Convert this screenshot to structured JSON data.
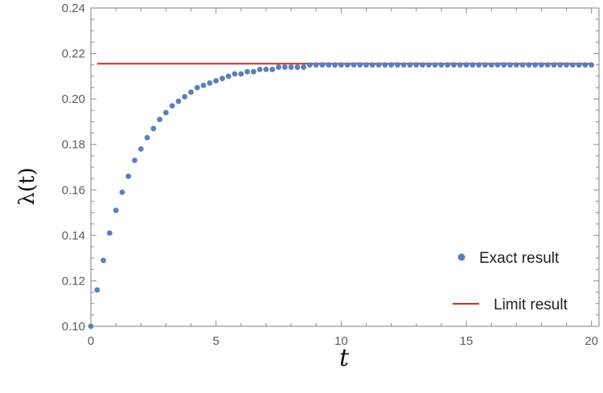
{
  "chart_data": {
    "type": "scatter",
    "title": "",
    "xlabel": "t",
    "ylabel": "λ(t)",
    "xlim": [
      0,
      20.3
    ],
    "ylim": [
      0.1,
      0.24
    ],
    "x_ticks": [
      0,
      5,
      10,
      15,
      20
    ],
    "y_ticks": [
      0.1,
      0.12,
      0.14,
      0.16,
      0.18,
      0.2,
      0.22,
      0.24
    ],
    "x_tick_labels": [
      "0",
      "5",
      "10",
      "15",
      "20"
    ],
    "y_tick_labels": [
      "0.10",
      "0.12",
      "0.14",
      "0.16",
      "0.18",
      "0.20",
      "0.22",
      "0.24"
    ],
    "grid": false,
    "legend_position": "bottom-right",
    "series": [
      {
        "name": "Exact result",
        "kind": "points",
        "color": "#5b7fbd",
        "x": [
          0.0,
          0.25,
          0.5,
          0.75,
          1.0,
          1.25,
          1.5,
          1.75,
          2.0,
          2.25,
          2.5,
          2.75,
          3.0,
          3.25,
          3.5,
          3.75,
          4.0,
          4.25,
          4.5,
          4.75,
          5.0,
          5.25,
          5.5,
          5.75,
          6.0,
          6.25,
          6.5,
          6.75,
          7.0,
          7.25,
          7.5,
          7.75,
          8.0,
          8.25,
          8.5,
          8.75,
          9.0,
          9.25,
          9.5,
          9.75,
          10.0,
          10.25,
          10.5,
          10.75,
          11.0,
          11.25,
          11.5,
          11.75,
          12.0,
          12.25,
          12.5,
          12.75,
          13.0,
          13.25,
          13.5,
          13.75,
          14.0,
          14.25,
          14.5,
          14.75,
          15.0,
          15.25,
          15.5,
          15.75,
          16.0,
          16.25,
          16.5,
          16.75,
          17.0,
          17.25,
          17.5,
          17.75,
          18.0,
          18.25,
          18.5,
          18.75,
          19.0,
          19.25,
          19.5,
          19.75,
          20.0
        ],
        "y": [
          0.1,
          0.116,
          0.129,
          0.141,
          0.151,
          0.159,
          0.166,
          0.173,
          0.178,
          0.183,
          0.187,
          0.191,
          0.194,
          0.197,
          0.199,
          0.201,
          0.203,
          0.205,
          0.206,
          0.207,
          0.208,
          0.209,
          0.21,
          0.211,
          0.211,
          0.212,
          0.212,
          0.213,
          0.213,
          0.213,
          0.214,
          0.214,
          0.214,
          0.214,
          0.214,
          0.215,
          0.215,
          0.215,
          0.215,
          0.215,
          0.215,
          0.215,
          0.215,
          0.215,
          0.215,
          0.215,
          0.215,
          0.215,
          0.215,
          0.215,
          0.215,
          0.215,
          0.215,
          0.215,
          0.215,
          0.215,
          0.215,
          0.215,
          0.215,
          0.215,
          0.215,
          0.215,
          0.215,
          0.215,
          0.215,
          0.215,
          0.215,
          0.215,
          0.215,
          0.215,
          0.215,
          0.215,
          0.215,
          0.215,
          0.215,
          0.215,
          0.215,
          0.215,
          0.215,
          0.215,
          0.215
        ]
      },
      {
        "name": "Limit result",
        "kind": "line",
        "color": "#d62a2a",
        "x": [
          0.25,
          20.0
        ],
        "y": [
          0.2155,
          0.2155
        ]
      }
    ]
  }
}
